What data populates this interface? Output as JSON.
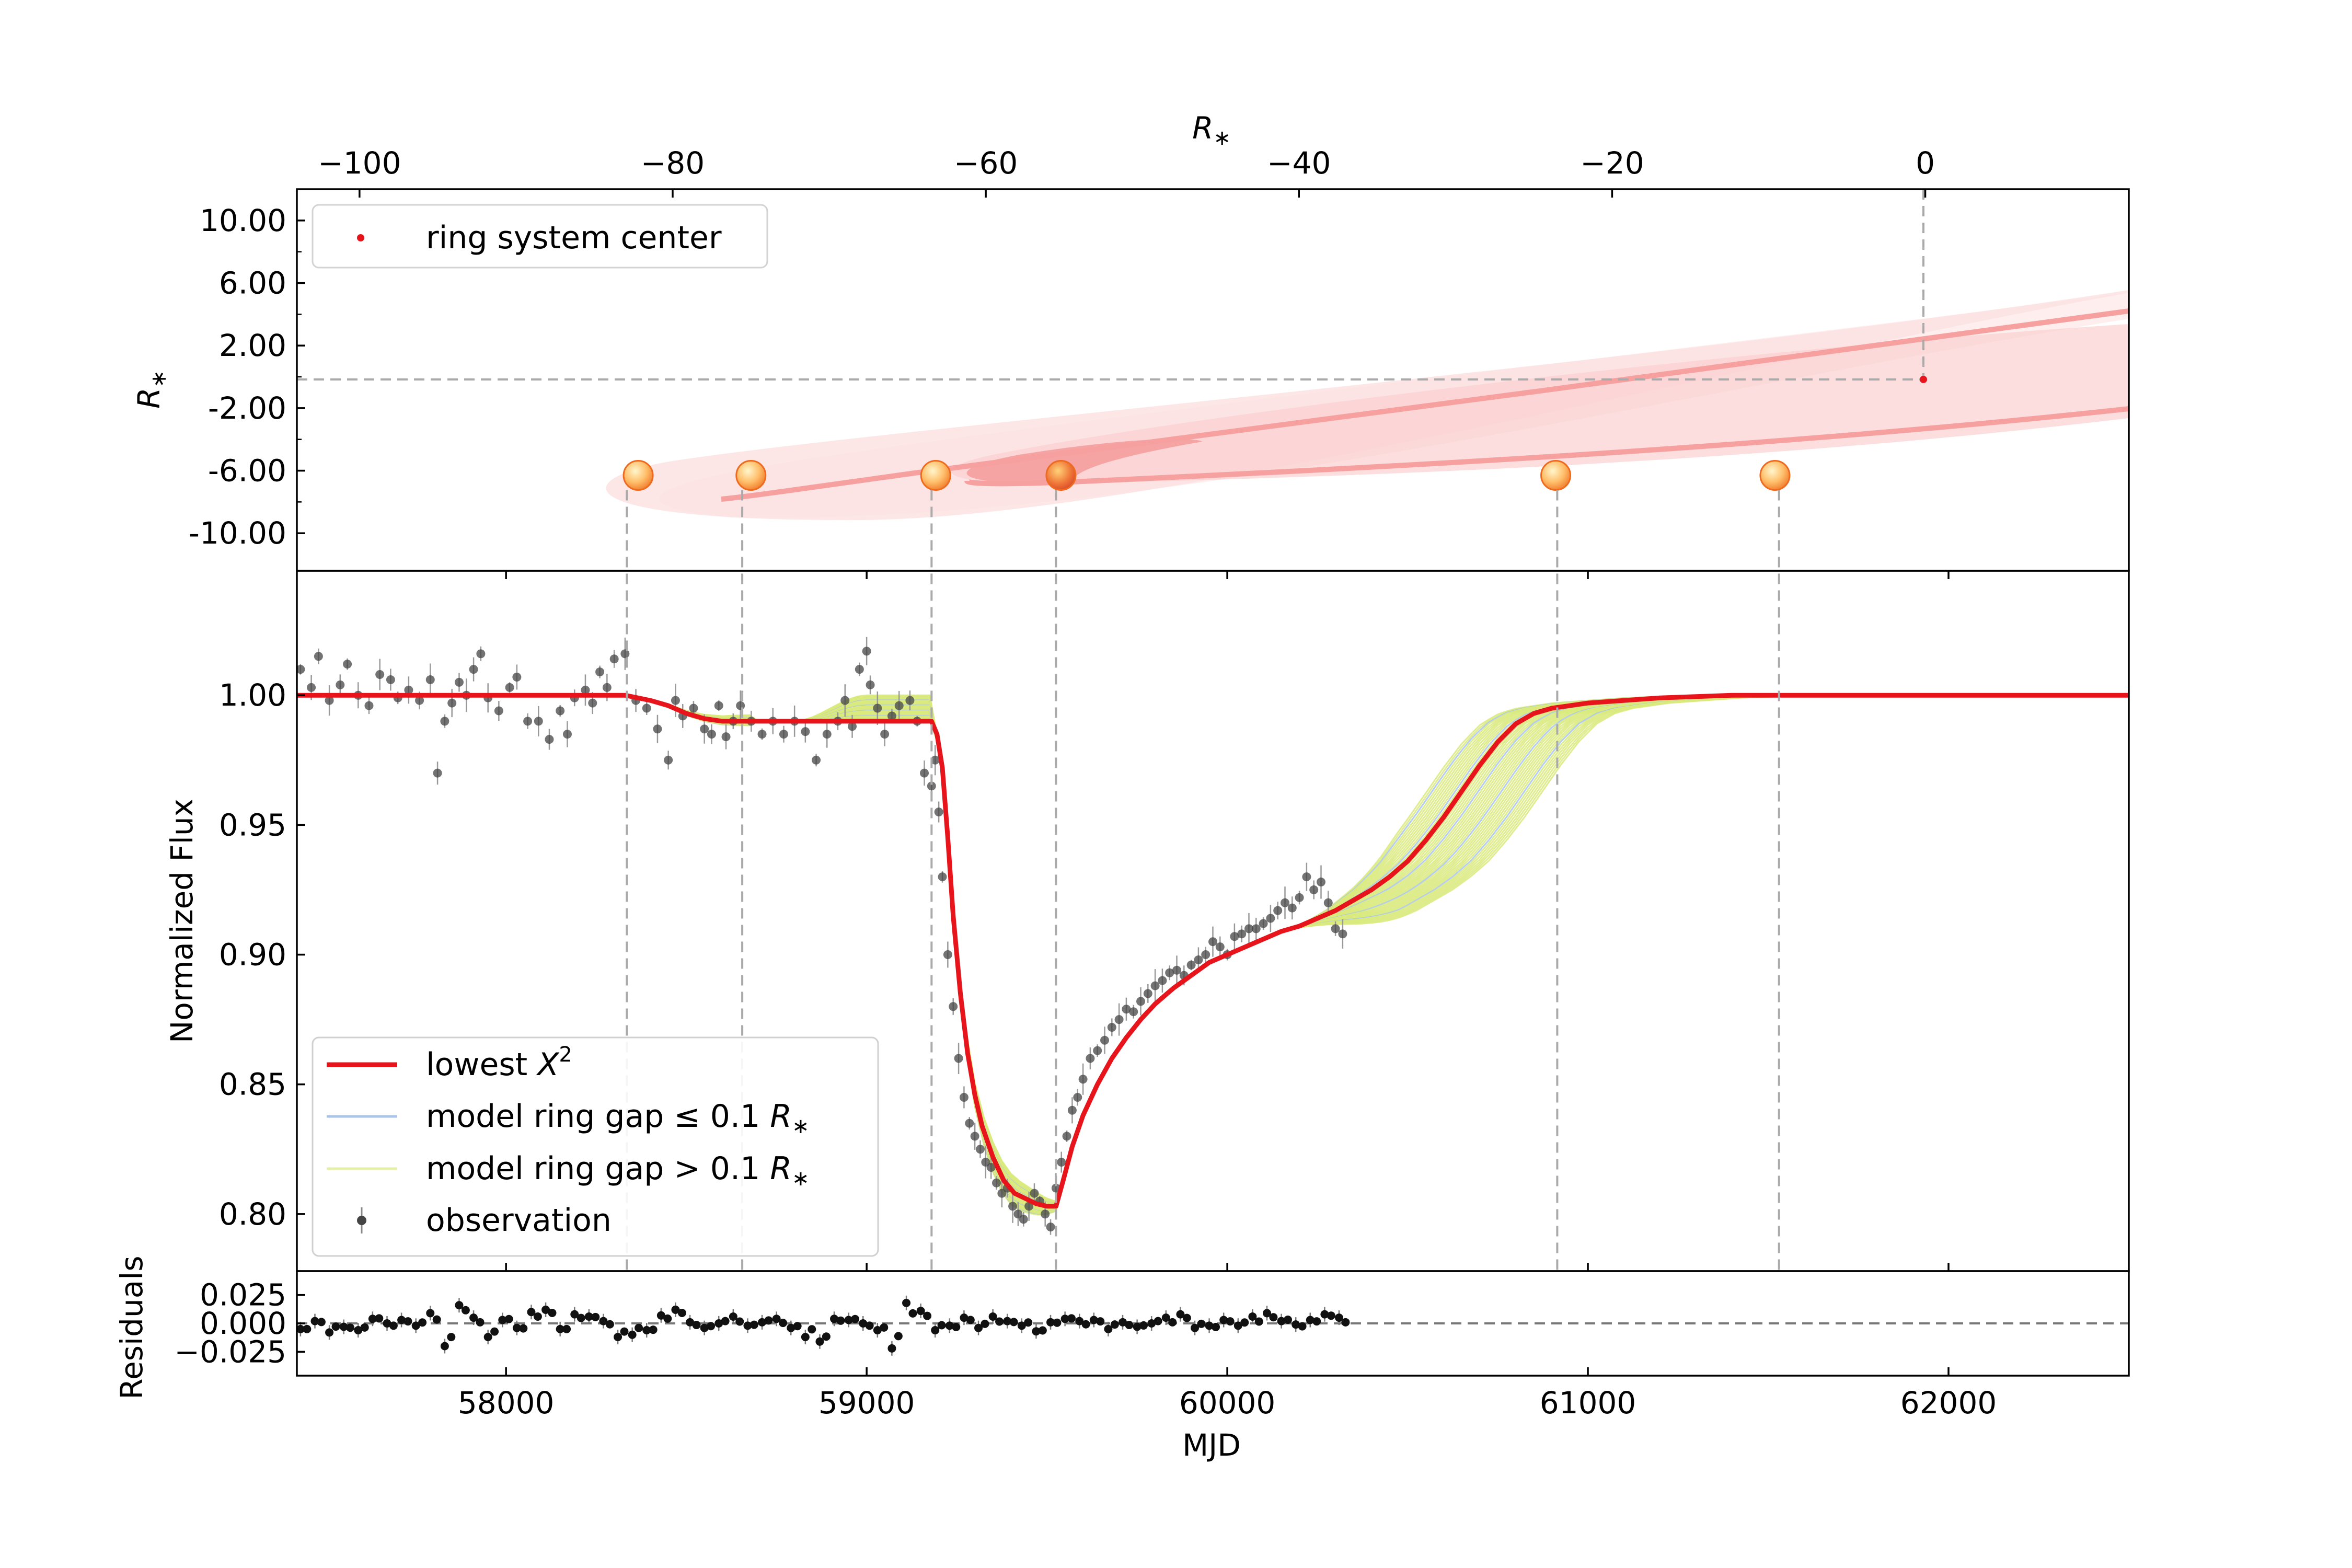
{
  "figure": {
    "top_panel": {
      "xlabel": "R_*",
      "ylabel": "R_*",
      "x_range": [
        -104,
        13
      ],
      "y_range": [
        -12.4,
        12.0
      ],
      "x_ticks": [
        -100,
        -80,
        -60,
        -40,
        -20,
        0
      ],
      "x_tick_labels": [
        "−100",
        "−80",
        "−60",
        "−40",
        "−20",
        "0"
      ],
      "y_ticks": [
        10,
        6,
        2,
        -2,
        -6,
        -10
      ],
      "y_tick_labels": [
        "10.00",
        "6.00",
        "2.00",
        "-2.00",
        "-6.00",
        "-10.00"
      ],
      "legend": {
        "entries": [
          "ring system center"
        ]
      },
      "ring_center": {
        "x": 0,
        "y": 0
      },
      "ring_color": "#f4a6a6",
      "star_y": -6.3,
      "star_positions_x": [
        -82.2,
        -75,
        -63.2,
        -55.2,
        -23.6,
        -9.6
      ]
    },
    "main_panel": {
      "ylabel": "Normalized Flux",
      "y_range": [
        0.778,
        1.048
      ],
      "y_ticks": [
        1.0,
        0.95,
        0.9,
        0.85,
        0.8
      ],
      "y_tick_labels": [
        "1.00",
        "0.95",
        "0.90",
        "0.85",
        "0.80"
      ],
      "legend": {
        "entries": [
          {
            "label": "lowest X²",
            "prefix": "lowest ",
            "sym": "X",
            "sup": "2",
            "color": "#e8141b"
          },
          {
            "label": "model ring gap ≤ 0.1 R*",
            "prefix": "model ring gap ",
            "op": "≤",
            "val": " 0.1 ",
            "sym": "R",
            "sub": "∗",
            "color": "#a9c6e8"
          },
          {
            "label": "model ring gap > 0.1 R*",
            "prefix": "model ring gap ",
            "op": ">",
            "val": " 0.1 ",
            "sym": "R",
            "sub": "∗",
            "color": "#e5f0a8"
          },
          {
            "label": "observation",
            "color": "#444444"
          }
        ]
      }
    },
    "residual_panel": {
      "ylabel": "Residuals",
      "xlabel": "MJD",
      "y_range": [
        -0.046,
        0.046
      ],
      "y_ticks": [
        0.025,
        0.0,
        -0.025
      ],
      "y_tick_labels": [
        "0.025",
        "0.000",
        "−0.025"
      ]
    },
    "shared_x": {
      "range": [
        57420,
        62500
      ],
      "ticks": [
        58000,
        59000,
        60000,
        61000,
        62000
      ],
      "tick_labels": [
        "58000",
        "59000",
        "60000",
        "61000",
        "62000"
      ]
    },
    "vertical_markers_mjd": [
      58335,
      58655,
      59180,
      59525,
      60915,
      61530
    ]
  },
  "chart_data": {
    "type": "line",
    "title": "",
    "xlabel": "MJD",
    "ylabel": "Normalized Flux",
    "series": [
      {
        "name": "lowest X²",
        "x": [
          57420,
          58330,
          58400,
          58450,
          58500,
          58550,
          58600,
          58650,
          59100,
          59180,
          59195,
          59210,
          59225,
          59240,
          59260,
          59280,
          59300,
          59320,
          59350,
          59380,
          59410,
          59440,
          59470,
          59500,
          59525,
          59545,
          59570,
          59600,
          59640,
          59680,
          59720,
          59760,
          59800,
          59850,
          59900,
          59950,
          60000,
          60050,
          60100,
          60150,
          60200,
          60250,
          60300,
          60350,
          60400,
          60450,
          60500,
          60550,
          60600,
          60650,
          60700,
          60750,
          60800,
          60850,
          60900,
          60950,
          61000,
          61200,
          61400,
          61600,
          61800,
          62000,
          62500
        ],
        "y": [
          1.0,
          1.0,
          0.998,
          0.996,
          0.993,
          0.991,
          0.99,
          0.99,
          0.99,
          0.99,
          0.985,
          0.972,
          0.945,
          0.915,
          0.885,
          0.862,
          0.846,
          0.834,
          0.822,
          0.813,
          0.808,
          0.806,
          0.804,
          0.803,
          0.803,
          0.813,
          0.826,
          0.838,
          0.85,
          0.86,
          0.868,
          0.875,
          0.881,
          0.887,
          0.892,
          0.897,
          0.9,
          0.903,
          0.906,
          0.909,
          0.911,
          0.914,
          0.917,
          0.921,
          0.925,
          0.93,
          0.936,
          0.944,
          0.953,
          0.963,
          0.973,
          0.982,
          0.989,
          0.993,
          0.995,
          0.996,
          0.997,
          0.999,
          1.0,
          1.0,
          1.0,
          1.0,
          1.0
        ]
      },
      {
        "name": "model ring gap ≤ 0.1 R*",
        "x": [
          60100,
          60200,
          60300,
          60400,
          60500,
          60600,
          60700,
          60800,
          60900,
          61000
        ],
        "y": [
          0.906,
          0.914,
          0.925,
          0.94,
          0.96,
          0.978,
          0.99,
          0.995,
          0.997,
          0.998
        ]
      },
      {
        "name": "model ring gap > 0.1 R*",
        "x": [
          60100,
          60200,
          60300,
          60400,
          60500,
          60600,
          60700,
          60800,
          60900,
          61000,
          61100,
          61200,
          61400
        ],
        "y": [
          0.904,
          0.91,
          0.916,
          0.922,
          0.928,
          0.935,
          0.942,
          0.95,
          0.96,
          0.972,
          0.985,
          0.994,
          1.0
        ]
      },
      {
        "name": "observation",
        "x": [
          57430,
          57460,
          57480,
          57510,
          57540,
          57560,
          57590,
          57620,
          57650,
          57680,
          57700,
          57730,
          57760,
          57790,
          57810,
          57830,
          57850,
          57870,
          57890,
          57910,
          57930,
          57950,
          57980,
          58010,
          58030,
          58060,
          58090,
          58120,
          58150,
          58170,
          58190,
          58220,
          58240,
          58260,
          58280,
          58300,
          58330,
          58360,
          58390,
          58420,
          58450,
          58470,
          58490,
          58520,
          58550,
          58570,
          58590,
          58610,
          58630,
          58650,
          58680,
          58710,
          58740,
          58770,
          58800,
          58830,
          58860,
          58890,
          58920,
          58940,
          58960,
          58980,
          59000,
          59010,
          59030,
          59050,
          59070,
          59090,
          59120,
          59140,
          59160,
          59180,
          59190,
          59200,
          59210,
          59225,
          59240,
          59255,
          59270,
          59285,
          59300,
          59315,
          59330,
          59345,
          59360,
          59375,
          59390,
          59405,
          59420,
          59435,
          59450,
          59465,
          59480,
          59495,
          59510,
          59525,
          59540,
          59555,
          59570,
          59585,
          59600,
          59620,
          59640,
          59660,
          59680,
          59700,
          59720,
          59740,
          59760,
          59780,
          59800,
          59820,
          59840,
          59860,
          59880,
          59900,
          59920,
          59940,
          59960,
          59980,
          60000,
          60020,
          60040,
          60060,
          60080,
          60100,
          60120,
          60140,
          60160,
          60180,
          60200,
          60220,
          60240,
          60260,
          60280,
          60300,
          60320
        ],
        "y": [
          1.01,
          1.003,
          1.015,
          0.998,
          1.004,
          1.012,
          1.0,
          0.996,
          1.008,
          1.006,
          0.999,
          1.002,
          0.998,
          1.006,
          0.97,
          0.99,
          0.997,
          1.005,
          1.0,
          1.01,
          1.016,
          0.999,
          0.994,
          1.003,
          1.007,
          0.99,
          0.99,
          0.983,
          0.994,
          0.985,
          0.999,
          1.002,
          0.997,
          1.009,
          1.003,
          1.014,
          1.016,
          0.998,
          0.995,
          0.987,
          0.975,
          0.998,
          0.992,
          0.995,
          0.987,
          0.985,
          0.996,
          0.984,
          0.99,
          0.996,
          0.99,
          0.985,
          0.99,
          0.985,
          0.99,
          0.986,
          0.975,
          0.985,
          0.99,
          0.998,
          0.988,
          1.01,
          1.017,
          1.004,
          0.995,
          0.985,
          0.992,
          0.996,
          0.998,
          0.99,
          0.97,
          0.965,
          0.975,
          0.955,
          0.93,
          0.9,
          0.88,
          0.86,
          0.845,
          0.835,
          0.83,
          0.825,
          0.82,
          0.818,
          0.812,
          0.808,
          0.81,
          0.803,
          0.8,
          0.798,
          0.803,
          0.808,
          0.805,
          0.8,
          0.795,
          0.81,
          0.82,
          0.83,
          0.84,
          0.845,
          0.852,
          0.86,
          0.863,
          0.867,
          0.872,
          0.875,
          0.879,
          0.878,
          0.882,
          0.885,
          0.888,
          0.89,
          0.893,
          0.894,
          0.892,
          0.896,
          0.898,
          0.9,
          0.905,
          0.903,
          0.9,
          0.907,
          0.908,
          0.91,
          0.91,
          0.912,
          0.914,
          0.917,
          0.92,
          0.918,
          0.922,
          0.93,
          0.925,
          0.928,
          0.92,
          0.91,
          0.908
        ]
      }
    ],
    "residuals": {
      "x": [
        57430,
        57470,
        57510,
        57550,
        57590,
        57630,
        57670,
        57710,
        57750,
        57790,
        57830,
        57870,
        57910,
        57950,
        57990,
        58030,
        58070,
        58110,
        58150,
        58190,
        58230,
        58270,
        58310,
        58350,
        58390,
        58430,
        58470,
        58510,
        58550,
        58590,
        58630,
        58670,
        58710,
        58750,
        58790,
        58830,
        58870,
        58910,
        58950,
        58990,
        59030,
        59070,
        59110,
        59150,
        59190,
        59230,
        59270,
        59310,
        59350,
        59390,
        59430,
        59470,
        59510,
        59550,
        59590,
        59630,
        59670,
        59710,
        59750,
        59790,
        59830,
        59870,
        59910,
        59950,
        59990,
        60030,
        60070,
        60110,
        60150,
        60190,
        60230,
        60270,
        60310
      ],
      "y": [
        -0.005,
        0.002,
        -0.008,
        -0.003,
        -0.006,
        0.004,
        0.0,
        0.003,
        -0.002,
        0.009,
        -0.02,
        0.016,
        0.005,
        -0.012,
        0.003,
        -0.004,
        0.01,
        0.012,
        -0.005,
        0.008,
        0.006,
        0.002,
        -0.012,
        -0.01,
        -0.006,
        0.007,
        0.012,
        0.001,
        -0.004,
        0.0,
        0.006,
        -0.002,
        0.001,
        0.004,
        -0.004,
        -0.012,
        -0.016,
        0.004,
        0.003,
        0.0,
        -0.006,
        -0.022,
        0.018,
        0.011,
        -0.006,
        -0.002,
        0.005,
        -0.004,
        0.006,
        0.002,
        -0.002,
        -0.007,
        0.001,
        0.004,
        0.002,
        0.003,
        -0.005,
        0.001,
        -0.003,
        0.0,
        0.005,
        0.008,
        -0.004,
        -0.002,
        0.003,
        -0.002,
        0.006,
        0.009,
        0.002,
        -0.001,
        0.003,
        0.008,
        0.005
      ]
    }
  }
}
